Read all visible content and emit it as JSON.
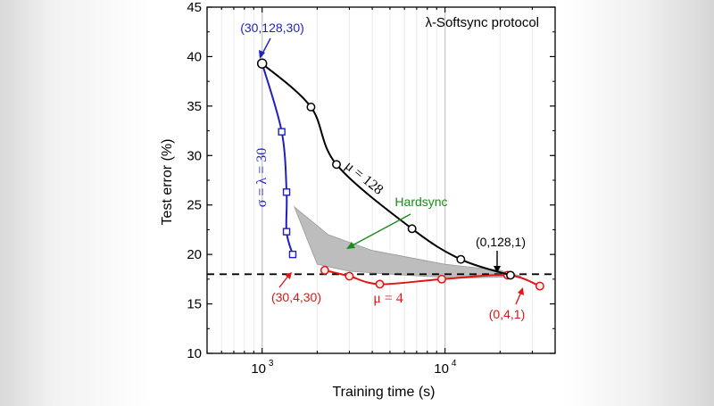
{
  "chart_data": {
    "type": "line",
    "title": "λ-Softsync protocol",
    "xlabel": "Training time (s)",
    "ylabel": "Test error (%)",
    "xscale": "log",
    "xlim": [
      500,
      40000
    ],
    "ylim": [
      10,
      45
    ],
    "x_ticks": [
      {
        "value": 1000,
        "label": "10",
        "exp": "3"
      },
      {
        "value": 10000,
        "label": "10",
        "exp": "4"
      }
    ],
    "y_ticks": [
      "10",
      "15",
      "20",
      "25",
      "30",
      "35",
      "40",
      "45"
    ],
    "y_tick_values": [
      10,
      15,
      20,
      25,
      30,
      35,
      40,
      45
    ],
    "grid": "vertical",
    "reference_line": {
      "y": 18,
      "style": "dashed",
      "color": "#000000"
    },
    "series": [
      {
        "name": "μ = 128",
        "color": "#000000",
        "marker": "circle",
        "x": [
          1000,
          1850,
          2550,
          6600,
          12200,
          22800
        ],
        "y": [
          39.3,
          34.9,
          29.1,
          22.6,
          19.5,
          17.9
        ]
      },
      {
        "name": "σ = λ = 30",
        "color": "#1f1fbf",
        "marker": "square",
        "x": [
          1000,
          1280,
          1360,
          1360,
          1470
        ],
        "y": [
          39.3,
          32.4,
          26.3,
          22.3,
          20.0
        ]
      },
      {
        "name": "μ = 4",
        "color": "#e01515",
        "marker": "circle",
        "x": [
          2200,
          3000,
          4400,
          9600,
          22000,
          33000
        ],
        "y": [
          18.4,
          17.8,
          17.0,
          17.5,
          17.9,
          16.8
        ]
      }
    ],
    "hardsync_region": {
      "label": "Hardsync",
      "color": "#bdbdbd",
      "upper": [
        [
          1500,
          24.8
        ],
        [
          2300,
          22.0
        ],
        [
          4000,
          20.4
        ],
        [
          10000,
          19.0
        ],
        [
          20000,
          18.4
        ],
        [
          26000,
          17.8
        ]
      ],
      "lower": [
        [
          26000,
          17.8
        ],
        [
          20000,
          17.7
        ],
        [
          12000,
          17.6
        ],
        [
          6000,
          17.9
        ],
        [
          3000,
          18.3
        ],
        [
          2000,
          19.0
        ],
        [
          1500,
          24.8
        ]
      ]
    },
    "annotations": [
      {
        "text": "(30,128,30)",
        "color": "#1f1fbf",
        "x": 1000,
        "y": 39.3
      },
      {
        "text": "(0,128,1)",
        "color": "#000000",
        "x": 22800,
        "y": 17.9
      },
      {
        "text": "(30,4,30)",
        "color": "#e01515",
        "x": 2200,
        "y": 18.4
      },
      {
        "text": "(0,4,1)",
        "color": "#e01515",
        "x": 33000,
        "y": 16.8
      },
      {
        "text": "Hardsync",
        "color": "#1a8a1a",
        "x": 4500,
        "y": 20.5
      }
    ]
  }
}
